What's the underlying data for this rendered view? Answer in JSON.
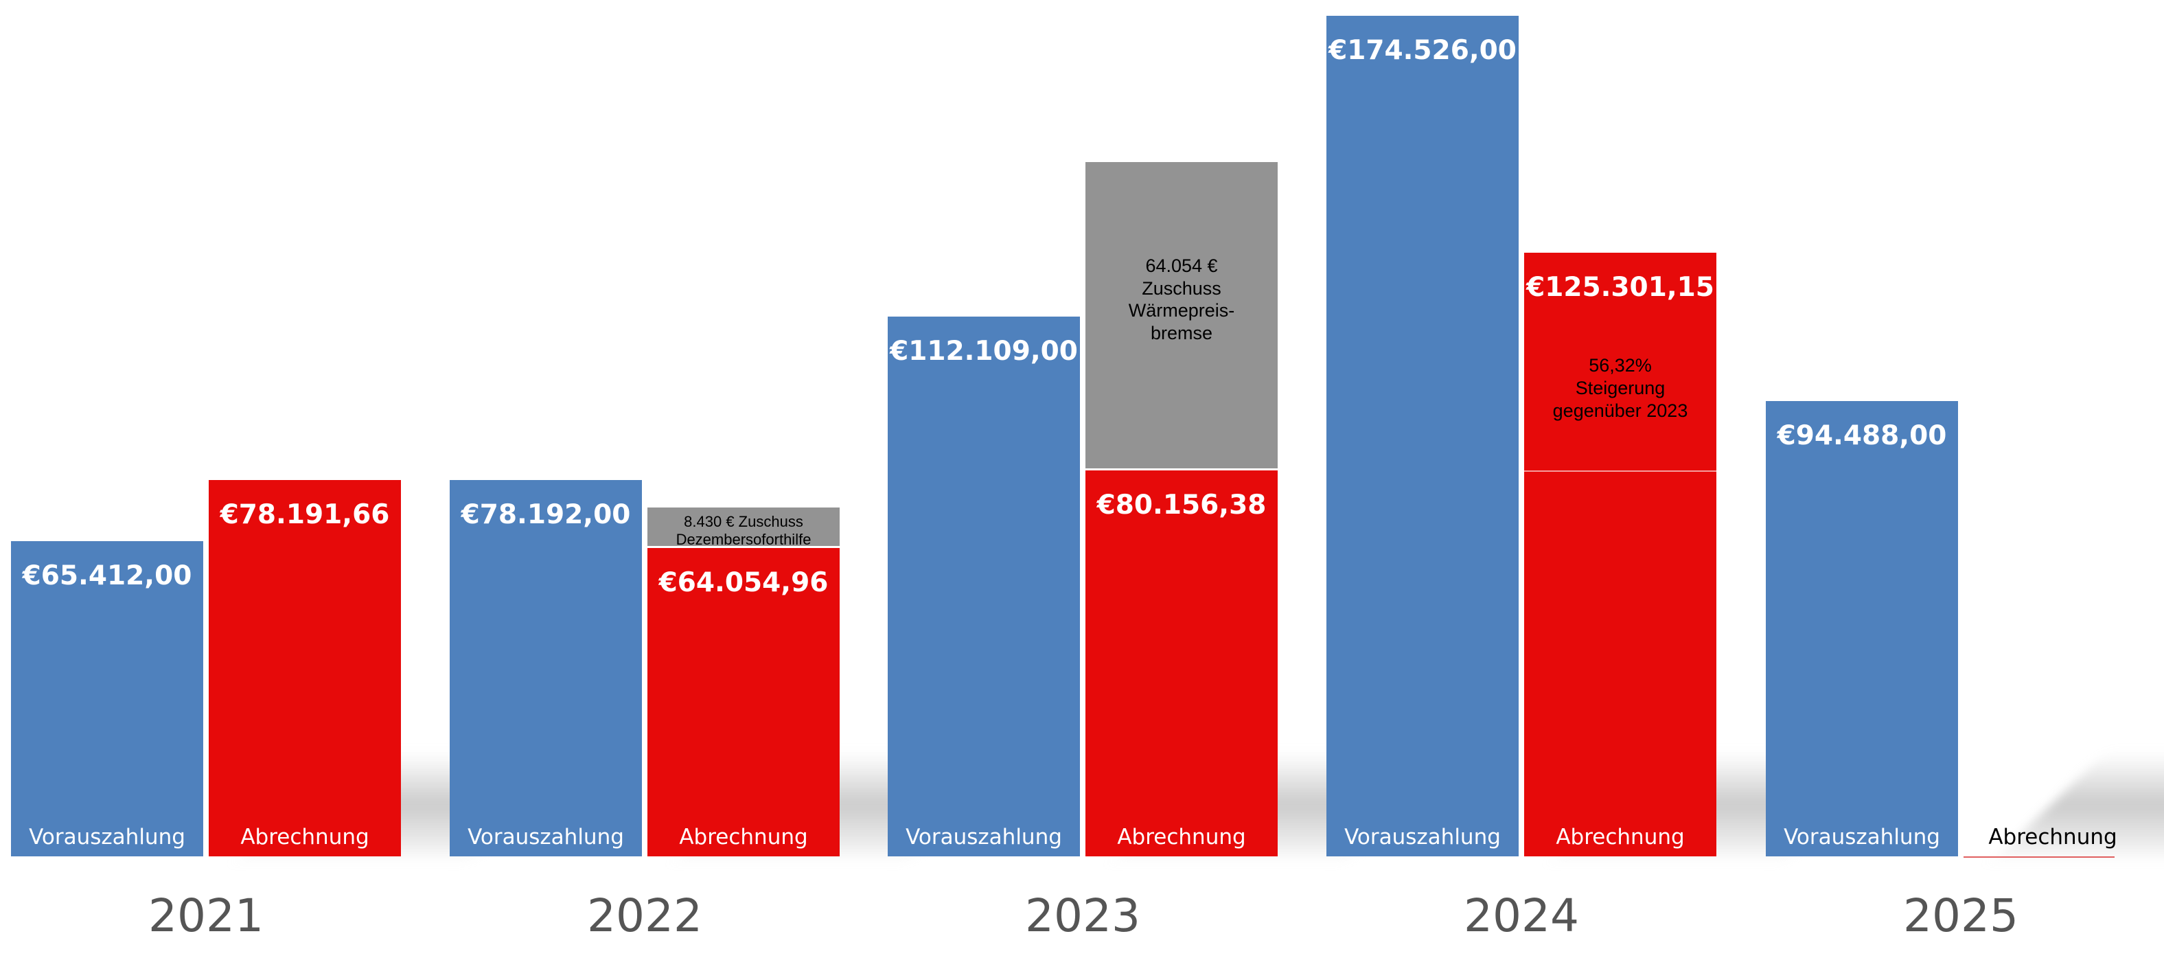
{
  "chart_data": {
    "type": "bar",
    "title": "",
    "xlabel": "",
    "ylabel": "",
    "ylim": [
      0,
      174526
    ],
    "grid": false,
    "categories": [
      "2021",
      "2022",
      "2023",
      "2024",
      "2025"
    ],
    "series_labels": {
      "advance": "Vorauszahlung",
      "settlement": "Abrechnung"
    },
    "colors": {
      "advance": "#4f81bd",
      "settlement": "#e60a0a",
      "subsidy": "#939393"
    },
    "groups": [
      {
        "year": "2021",
        "advance": 65412.0,
        "advance_label": "€65.412,00",
        "settlement": 78191.66,
        "settlement_label": "€78.191,66"
      },
      {
        "year": "2022",
        "advance": 78192.0,
        "advance_label": "€78.192,00",
        "settlement": 64054.96,
        "settlement_label": "€64.054,96",
        "subsidy": 8430,
        "subsidy_label": "8.430 € Zuschuss\nDezembersoforthilfe"
      },
      {
        "year": "2023",
        "advance": 112109.0,
        "advance_label": "€112.109,00",
        "settlement": 80156.38,
        "settlement_label": "€80.156,38",
        "subsidy": 64054,
        "subsidy_label": "64.054 €\nZuschuss\nWärmepreis-\nbremse"
      },
      {
        "year": "2024",
        "advance": 174526.0,
        "advance_label": "€174.526,00",
        "settlement": 125301.15,
        "settlement_label": "€125.301,15",
        "reference_level": 80156.38,
        "annotation": "56,32%\nSteigerung\ngegenüber 2023"
      },
      {
        "year": "2025",
        "advance": 94488.0,
        "advance_label": "€94.488,00",
        "settlement": null,
        "settlement_label": ""
      }
    ]
  }
}
